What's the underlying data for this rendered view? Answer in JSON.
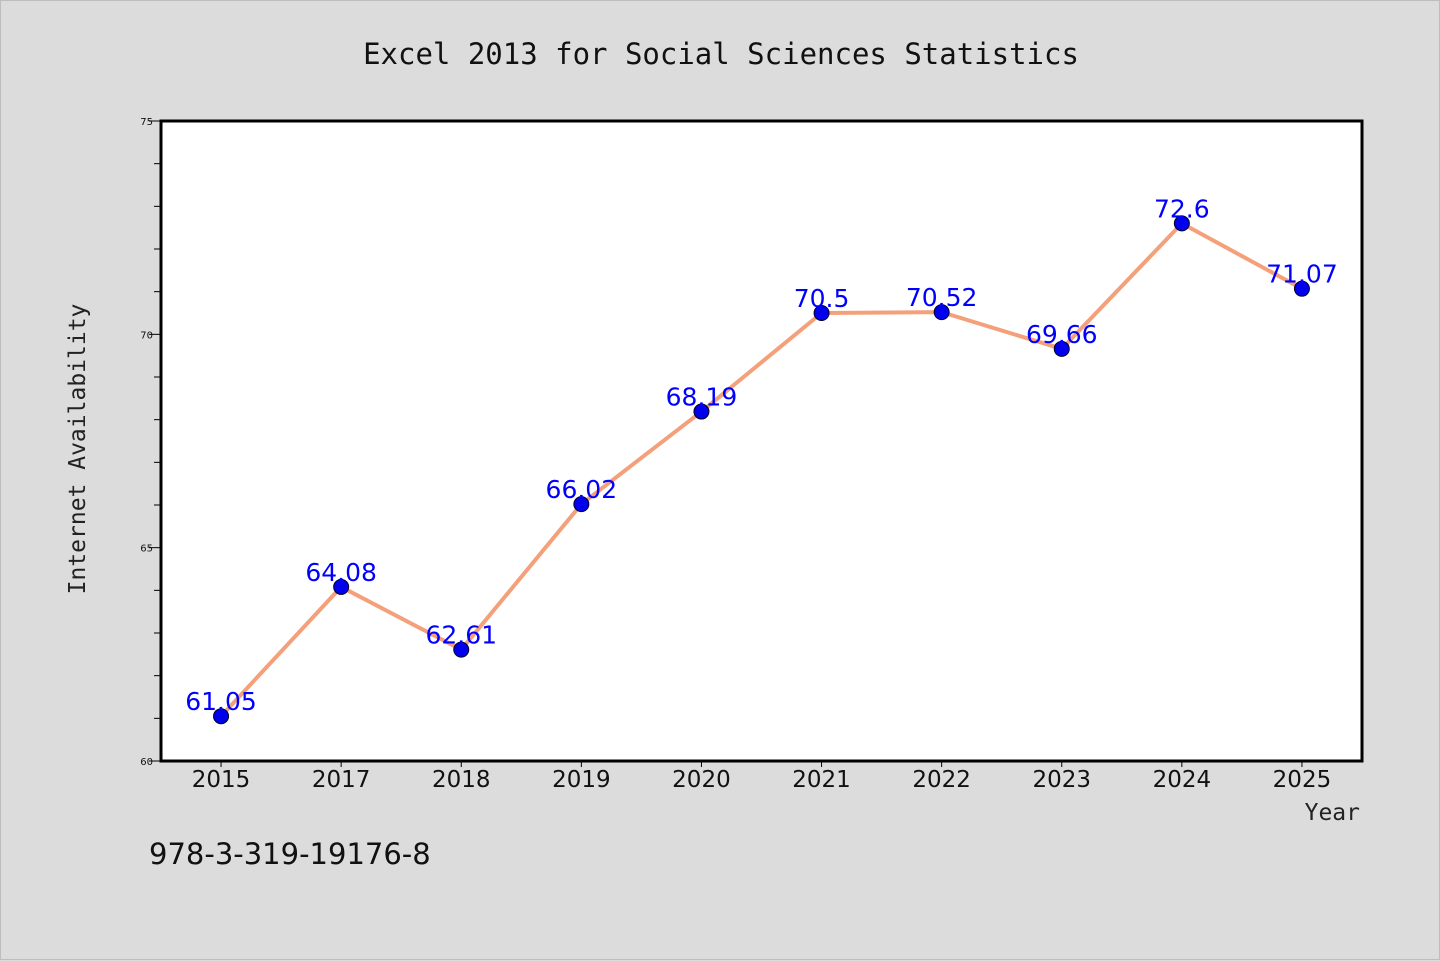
{
  "chart_data": {
    "type": "line",
    "title": "Excel 2013 for Social Sciences Statistics",
    "xlabel": "Year",
    "ylabel": "Internet Availability",
    "categories": [
      "2015",
      "2017",
      "2018",
      "2019",
      "2020",
      "2021",
      "2022",
      "2023",
      "2024",
      "2025"
    ],
    "values": [
      61.05,
      64.08,
      62.61,
      66.02,
      68.19,
      70.5,
      70.52,
      69.66,
      72.6,
      71.07
    ],
    "data_labels": [
      "61.05",
      "64.08",
      "62.61",
      "66.02",
      "68.19",
      "70.5",
      "70.52",
      "69.66",
      "72.6",
      "71.07"
    ],
    "ylim": [
      60,
      75
    ],
    "yticks": [
      60,
      65,
      70,
      75
    ],
    "grid": false,
    "legend": "none",
    "colors": {
      "line": "#f4a07a",
      "marker": "#0000ee",
      "data_label": "#0000ff",
      "background": "#dcdcdc",
      "plot_area": "#ffffff"
    }
  },
  "footer": {
    "isbn": "978-3-319-19176-8"
  }
}
